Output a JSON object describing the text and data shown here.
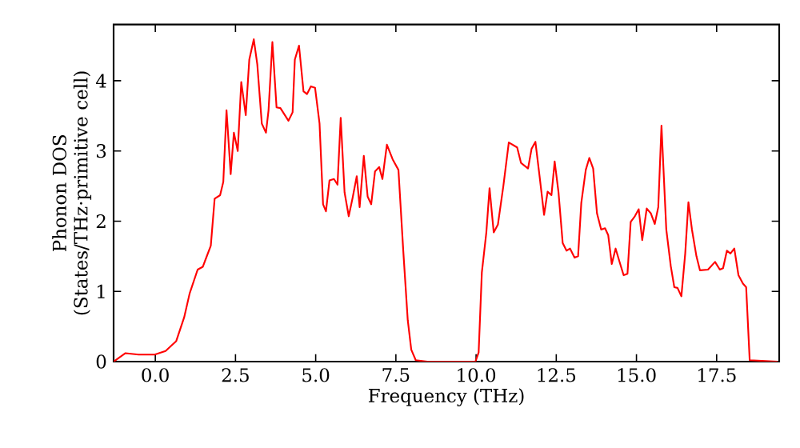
{
  "chart_data": {
    "type": "line",
    "xlabel": "Frequency (THz)",
    "ylabel": "Phonon DOS (States/THz·primitive cell)",
    "xlim": [
      -1.3,
      19.45
    ],
    "ylim": [
      0,
      4.8
    ],
    "xticks": [
      {
        "value": 0,
        "label": "0.0"
      },
      2.5,
      {
        "value": 5,
        "label": "5.0"
      },
      7.5,
      {
        "value": 10,
        "label": "10.0"
      },
      12.5,
      {
        "value": 15,
        "label": "15.0"
      },
      17.5
    ],
    "yticks": [
      0,
      1,
      2,
      3,
      4
    ],
    "grid": false,
    "marker": "none",
    "line_style": "solid",
    "series": [
      {
        "color": "#ff0000",
        "x": [
          -1.3,
          -0.93,
          -0.52,
          -0.02,
          0.32,
          0.65,
          0.9,
          1.07,
          1.32,
          1.48,
          1.73,
          1.85,
          2.02,
          2.12,
          2.22,
          2.35,
          2.45,
          2.57,
          2.68,
          2.82,
          2.93,
          3.07,
          3.18,
          3.32,
          3.45,
          3.53,
          3.65,
          3.78,
          3.9,
          4.15,
          4.28,
          4.35,
          4.48,
          4.62,
          4.73,
          4.85,
          4.98,
          5.12,
          5.23,
          5.32,
          5.43,
          5.57,
          5.68,
          5.78,
          5.9,
          6.03,
          6.15,
          6.28,
          6.37,
          6.5,
          6.62,
          6.73,
          6.85,
          6.98,
          7.08,
          7.22,
          7.4,
          7.58,
          7.73,
          7.87,
          7.98,
          8.12,
          8.48,
          9.98,
          10.08,
          10.18,
          10.32,
          10.42,
          10.55,
          10.68,
          10.85,
          11.02,
          11.28,
          11.4,
          11.62,
          11.73,
          11.85,
          11.98,
          12.12,
          12.23,
          12.35,
          12.45,
          12.57,
          12.7,
          12.82,
          12.93,
          13.07,
          13.18,
          13.28,
          13.42,
          13.53,
          13.65,
          13.77,
          13.9,
          14.02,
          14.12,
          14.23,
          14.35,
          14.48,
          14.6,
          14.72,
          14.82,
          14.95,
          15.07,
          15.18,
          15.32,
          15.45,
          15.57,
          15.68,
          15.78,
          15.93,
          16.07,
          16.18,
          16.28,
          16.4,
          16.52,
          16.62,
          16.73,
          16.87,
          16.98,
          17.23,
          17.45,
          17.6,
          17.7,
          17.82,
          17.93,
          18.05,
          18.18,
          18.32,
          18.42,
          18.53,
          19.4
        ],
        "values": [
          0,
          0.12,
          0.1,
          0.1,
          0.15,
          0.29,
          0.63,
          0.97,
          1.31,
          1.35,
          1.65,
          2.32,
          2.37,
          2.56,
          3.58,
          2.67,
          3.26,
          3.0,
          3.98,
          3.51,
          4.3,
          4.59,
          4.23,
          3.39,
          3.26,
          3.58,
          4.55,
          3.62,
          3.61,
          3.43,
          3.55,
          4.3,
          4.5,
          3.85,
          3.81,
          3.92,
          3.9,
          3.39,
          2.24,
          2.14,
          2.58,
          2.6,
          2.52,
          3.47,
          2.41,
          2.07,
          2.33,
          2.64,
          2.2,
          2.93,
          2.35,
          2.24,
          2.71,
          2.77,
          2.6,
          3.09,
          2.88,
          2.73,
          1.58,
          0.59,
          0.17,
          0.02,
          0,
          0,
          0.13,
          1.27,
          1.84,
          2.47,
          1.84,
          1.95,
          2.5,
          3.12,
          3.05,
          2.83,
          2.75,
          3.03,
          3.13,
          2.64,
          2.09,
          2.42,
          2.37,
          2.85,
          2.41,
          1.69,
          1.58,
          1.61,
          1.48,
          1.5,
          2.26,
          2.73,
          2.9,
          2.75,
          2.11,
          1.88,
          1.9,
          1.8,
          1.39,
          1.61,
          1.41,
          1.23,
          1.25,
          1.99,
          2.07,
          2.17,
          1.73,
          2.18,
          2.11,
          1.96,
          2.2,
          3.36,
          1.88,
          1.36,
          1.06,
          1.05,
          0.93,
          1.54,
          2.27,
          1.88,
          1.5,
          1.3,
          1.31,
          1.42,
          1.31,
          1.33,
          1.58,
          1.54,
          1.61,
          1.23,
          1.11,
          1.06,
          0.02,
          0
        ]
      }
    ]
  }
}
